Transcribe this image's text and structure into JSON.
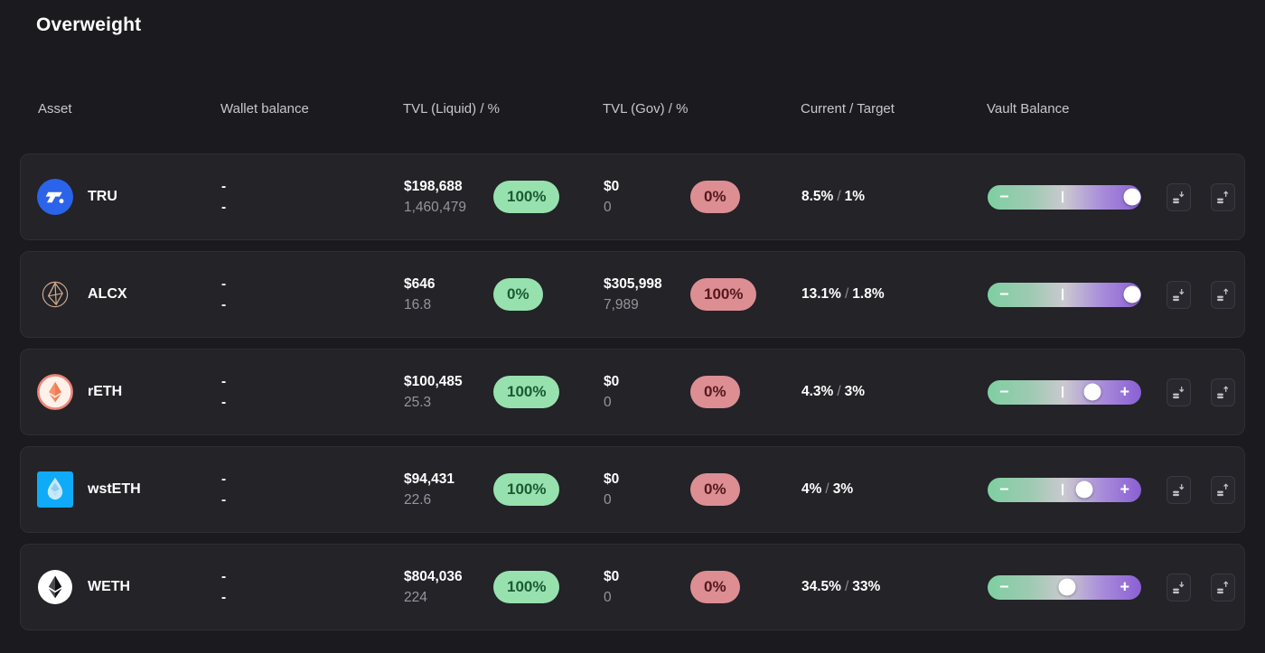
{
  "title": "Overweight",
  "sep": "/",
  "glyphs": {
    "minus": "−",
    "plus": "+"
  },
  "columns": {
    "asset": "Asset",
    "wallet": "Wallet balance",
    "tvl_liquid": "TVL (Liquid) / %",
    "tvl_gov": "TVL (Gov) / %",
    "current_target": "Current / Target",
    "vault_balance": "Vault Balance"
  },
  "colors": {
    "page_bg": "#1a1a1f",
    "card_bg": "#232328",
    "badge_green_bg": "#97e1ae",
    "badge_green_text": "#1b5a32",
    "badge_red_bg": "#dd8e93",
    "badge_red_text": "#52191e",
    "slider_green": "#7ecfa1",
    "slider_purple": "#8a5fd4",
    "tru_blue": "#2b63ea",
    "wsteth_blue": "#0faaf8"
  },
  "rows": [
    {
      "asset": {
        "symbol": "TRU"
      },
      "wallet": {
        "line1": "-",
        "line2": "-"
      },
      "tvl_liquid": {
        "usd": "$198,688",
        "amount": "1,460,479",
        "pct": "100%"
      },
      "tvl_gov": {
        "usd": "$0",
        "amount": "0",
        "pct": "0%"
      },
      "current": "8.5%",
      "target": "1%",
      "slider": {
        "knob_pct": 94,
        "has_plus": false
      }
    },
    {
      "asset": {
        "symbol": "ALCX"
      },
      "wallet": {
        "line1": "-",
        "line2": "-"
      },
      "tvl_liquid": {
        "usd": "$646",
        "amount": "16.8",
        "pct": "0%"
      },
      "tvl_gov": {
        "usd": "$305,998",
        "amount": "7,989",
        "pct": "100%"
      },
      "current": "13.1%",
      "target": "1.8%",
      "slider": {
        "knob_pct": 94,
        "has_plus": false
      }
    },
    {
      "asset": {
        "symbol": "rETH"
      },
      "wallet": {
        "line1": "-",
        "line2": "-"
      },
      "tvl_liquid": {
        "usd": "$100,485",
        "amount": "25.3",
        "pct": "100%"
      },
      "tvl_gov": {
        "usd": "$0",
        "amount": "0",
        "pct": "0%"
      },
      "current": "4.3%",
      "target": "3%",
      "slider": {
        "knob_pct": 68,
        "has_plus": true
      }
    },
    {
      "asset": {
        "symbol": "wstETH"
      },
      "wallet": {
        "line1": "-",
        "line2": "-"
      },
      "tvl_liquid": {
        "usd": "$94,431",
        "amount": "22.6",
        "pct": "100%"
      },
      "tvl_gov": {
        "usd": "$0",
        "amount": "0",
        "pct": "0%"
      },
      "current": "4%",
      "target": "3%",
      "slider": {
        "knob_pct": 63,
        "has_plus": true
      }
    },
    {
      "asset": {
        "symbol": "WETH"
      },
      "wallet": {
        "line1": "-",
        "line2": "-"
      },
      "tvl_liquid": {
        "usd": "$804,036",
        "amount": "224",
        "pct": "100%"
      },
      "tvl_gov": {
        "usd": "$0",
        "amount": "0",
        "pct": "0%"
      },
      "current": "34.5%",
      "target": "33%",
      "slider": {
        "knob_pct": 52,
        "has_plus": true
      }
    }
  ]
}
